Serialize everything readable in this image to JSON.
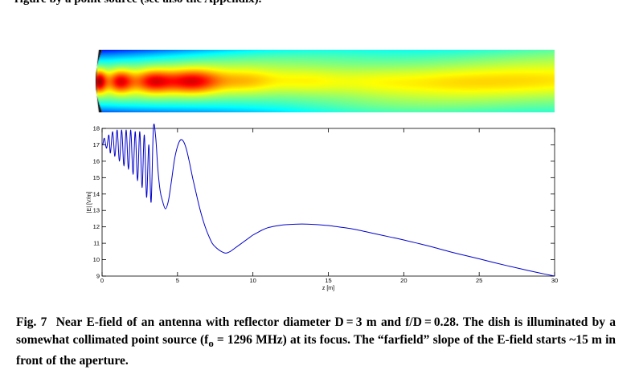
{
  "page": {
    "top_fragment": "rigure by a point source (see also tne Appendix)."
  },
  "heatmap": {
    "type": "heatmap",
    "description_colormap": "jet"
  },
  "chart_data": {
    "type": "line",
    "xlabel": "z [m]",
    "ylabel": "|E| [V/m]",
    "xlim": [
      0,
      30
    ],
    "ylim": [
      9,
      18
    ],
    "x_ticks": [
      0,
      5,
      10,
      15,
      20,
      25,
      30
    ],
    "y_ticks": [
      9,
      10,
      11,
      12,
      13,
      14,
      15,
      16,
      17,
      18
    ],
    "color": "#0000cc",
    "x": [
      0.05,
      0.15,
      0.3,
      0.45,
      0.55,
      0.7,
      0.85,
      1.0,
      1.15,
      1.3,
      1.45,
      1.6,
      1.75,
      1.9,
      2.05,
      2.2,
      2.35,
      2.5,
      2.65,
      2.8,
      2.95,
      3.1,
      3.25,
      3.4,
      3.55,
      3.7,
      3.85,
      4.0,
      4.2,
      4.4,
      4.6,
      4.8,
      5.0,
      5.2,
      5.4,
      5.6,
      5.8,
      6.0,
      6.2,
      6.4,
      6.6,
      6.8,
      7.0,
      7.3,
      7.6,
      7.9,
      8.2,
      8.5,
      8.8,
      9.1,
      9.4,
      9.7,
      10.0,
      10.3,
      10.6,
      11.0,
      11.5,
      12.0,
      12.5,
      13.0,
      13.5,
      14.0,
      14.5,
      15.0,
      15.5,
      16.0,
      16.5,
      17.0,
      17.5,
      18.0,
      19.0,
      20.0,
      21.0,
      22.0,
      23.0,
      24.0,
      25.0,
      26.0,
      27.0,
      28.0,
      29.0,
      30.0
    ],
    "y": [
      17.0,
      17.4,
      16.8,
      17.6,
      16.5,
      17.8,
      16.3,
      17.9,
      16.0,
      17.9,
      15.7,
      17.9,
      15.5,
      17.9,
      15.2,
      17.8,
      14.8,
      17.8,
      14.4,
      17.6,
      13.8,
      17.0,
      13.5,
      18.0,
      17.5,
      15.5,
      14.2,
      13.6,
      13.1,
      13.6,
      14.8,
      16.1,
      16.9,
      17.3,
      17.2,
      16.7,
      15.9,
      15.0,
      14.2,
      13.4,
      12.7,
      12.1,
      11.6,
      11.0,
      10.7,
      10.5,
      10.4,
      10.5,
      10.7,
      10.9,
      11.1,
      11.3,
      11.5,
      11.65,
      11.8,
      11.95,
      12.05,
      12.12,
      12.15,
      12.17,
      12.17,
      12.15,
      12.12,
      12.08,
      12.02,
      11.96,
      11.89,
      11.8,
      11.7,
      11.6,
      11.4,
      11.2,
      10.98,
      10.75,
      10.5,
      10.27,
      10.05,
      9.82,
      9.6,
      9.39,
      9.19,
      9.0
    ]
  },
  "caption": {
    "label": "Fig. 7",
    "text_1": "Near E-field of an antenna with reflector diameter D = 3 m and f/D = 0.28. The dish is illuminated by a somewhat collimated point source (f",
    "sub": "o",
    "text_2": " = 1296 MHz) at its focus. The “farfield” slope of the E-field starts ~15 m in front of the aperture."
  }
}
